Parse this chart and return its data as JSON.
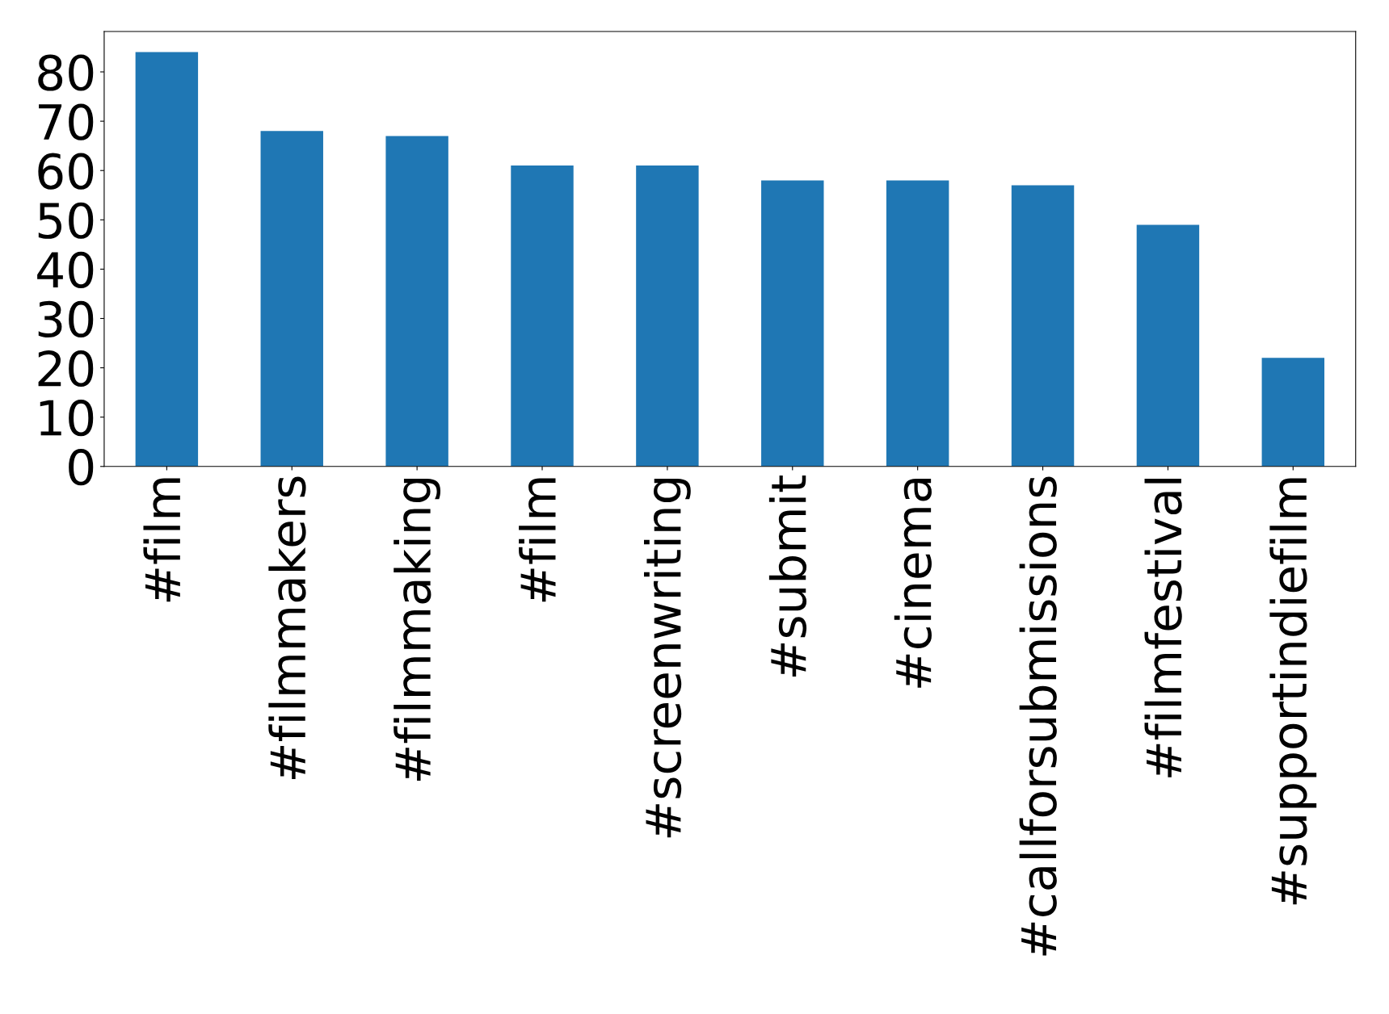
{
  "chart_data": {
    "type": "bar",
    "categories": [
      "#film",
      "#filmmakers",
      "#filmmaking",
      "#film",
      "#screenwriting",
      "#submit",
      "#cinema",
      "#callforsubmissions",
      "#filmfestival",
      "#supportindiefilm"
    ],
    "values": [
      84,
      68,
      67,
      61,
      61,
      58,
      58,
      57,
      49,
      22
    ],
    "color": "#1f77b4",
    "ylim": [
      0,
      88.2
    ],
    "yticks": [
      0,
      10,
      20,
      30,
      40,
      50,
      60,
      70,
      80
    ],
    "grid": false
  }
}
